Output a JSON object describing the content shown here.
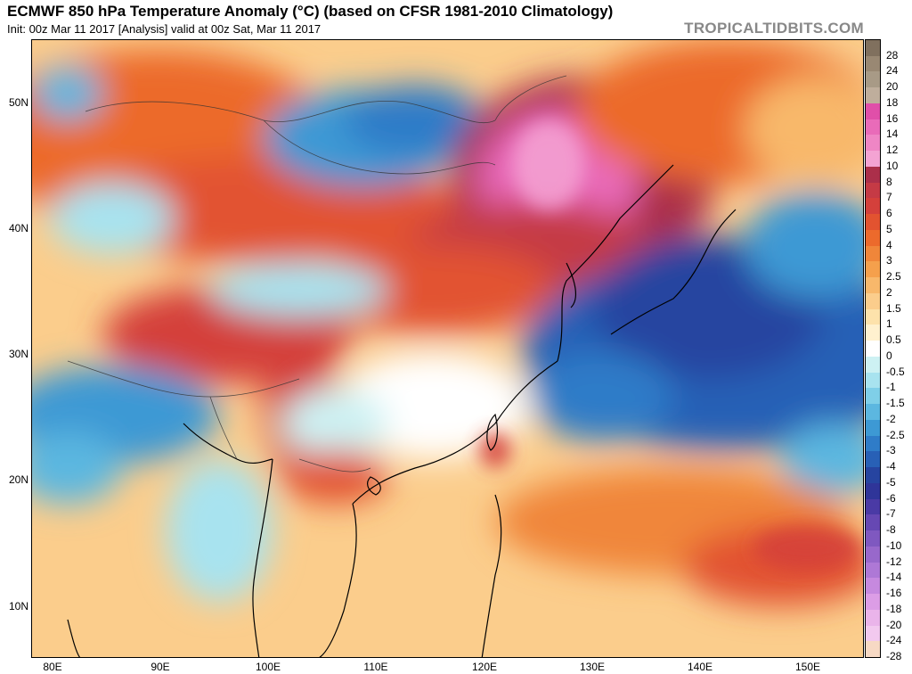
{
  "header": {
    "title": "ECMWF 850 hPa Temperature Anomaly (°C) (based on CFSR 1981-2010 Climatology)",
    "subtitle": "Init: 00z Mar 11 2017   [Analysis]   valid at 00z Sat, Mar 11 2017",
    "brand": "TROPICALTIDBITS.COM"
  },
  "map": {
    "lat_labels": [
      "50N",
      "40N",
      "30N",
      "20N",
      "10N"
    ],
    "lon_labels": [
      "80E",
      "90E",
      "100E",
      "110E",
      "120E",
      "130E",
      "140E",
      "150E"
    ],
    "extent": {
      "lon": [
        78,
        156
      ],
      "lat": [
        6,
        55
      ]
    }
  },
  "colorbar": {
    "labels": [
      "28",
      "24",
      "20",
      "18",
      "16",
      "14",
      "12",
      "10",
      "8",
      "7",
      "6",
      "5",
      "4",
      "3",
      "2.5",
      "2",
      "1.5",
      "1",
      "0.5",
      "0",
      "-0.5",
      "-1",
      "-1.5",
      "-2",
      "-2.5",
      "-3",
      "-4",
      "-5",
      "-6",
      "-7",
      "-8",
      "-10",
      "-12",
      "-14",
      "-16",
      "-18",
      "-20",
      "-24",
      "-28"
    ],
    "colors": [
      "#80705e",
      "#998873",
      "#a89a86",
      "#bfae9c",
      "#e04fa9",
      "#e96bb9",
      "#ef86c5",
      "#f4a3d3",
      "#ab2f4a",
      "#c53a45",
      "#d4403b",
      "#e25330",
      "#ec6a2c",
      "#f0863a",
      "#f5a04c",
      "#f8b86b",
      "#fbcd8c",
      "#fde2ab",
      "#fff1cf",
      "#ffffff",
      "#cdf1f3",
      "#a8e3ef",
      "#7fcfe8",
      "#5cb7e0",
      "#3d99d4",
      "#2f7cc8",
      "#2860b6",
      "#2644a0",
      "#2f3599",
      "#4a3aa5",
      "#6648b3",
      "#7f58c0",
      "#9868cb",
      "#ae78d6",
      "#c689df",
      "#dc9de6",
      "#eab4ea",
      "#f2c9ef",
      "#f7d9c4"
    ]
  }
}
